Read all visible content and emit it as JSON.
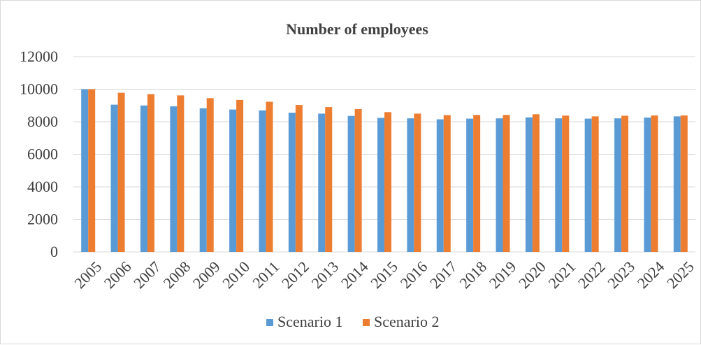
{
  "chart_data": {
    "type": "bar",
    "title": "Number of employees",
    "categories": [
      "2005",
      "2006",
      "2007",
      "2008",
      "2009",
      "2010",
      "2011",
      "2012",
      "2013",
      "2014",
      "2015",
      "2016",
      "2017",
      "2018",
      "2019",
      "2020",
      "2021",
      "2022",
      "2023",
      "2024",
      "2025"
    ],
    "series": [
      {
        "name": "Scenario 1",
        "color": "#5b9bd5",
        "values": [
          10000,
          9050,
          9000,
          8950,
          8830,
          8750,
          8700,
          8560,
          8500,
          8360,
          8240,
          8210,
          8150,
          8190,
          8210,
          8270,
          8210,
          8190,
          8210,
          8260,
          8330
        ]
      },
      {
        "name": "Scenario 2",
        "color": "#ed7d31",
        "values": [
          10000,
          9780,
          9700,
          9620,
          9450,
          9340,
          9230,
          9030,
          8900,
          8780,
          8590,
          8500,
          8410,
          8420,
          8420,
          8460,
          8380,
          8330,
          8370,
          8390,
          8390
        ]
      }
    ],
    "ylim": [
      0,
      12000
    ],
    "yticks": [
      "0",
      "2000",
      "4000",
      "6000",
      "8000",
      "10000",
      "12000"
    ],
    "grid": true,
    "legend": "bottom"
  }
}
